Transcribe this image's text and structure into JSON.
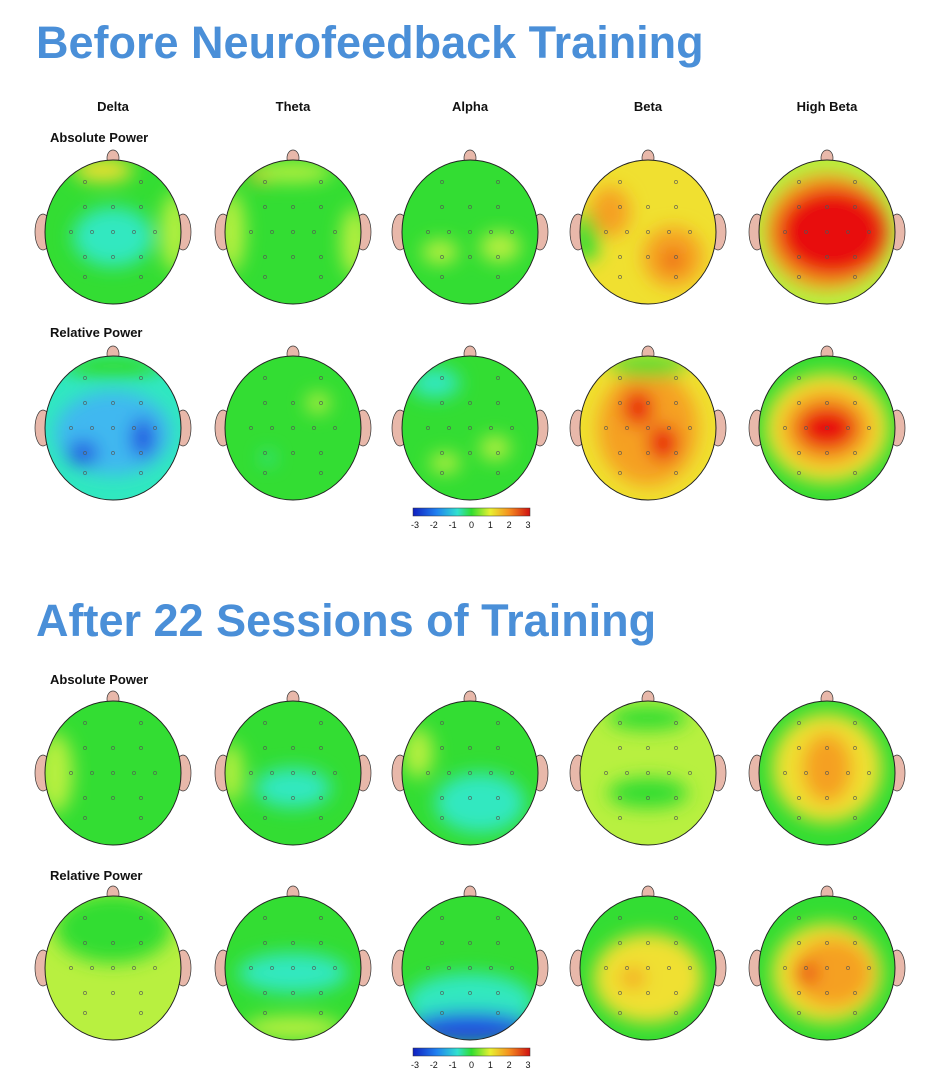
{
  "sections": [
    {
      "title": "Before Neurofeedback Training",
      "bands": [
        "Delta",
        "Theta",
        "Alpha",
        "Beta",
        "High Beta"
      ],
      "rows": [
        {
          "label": "Absolute Power"
        },
        {
          "label": "Relative Power"
        }
      ],
      "colorbar": {
        "ticks": [
          -3,
          -2,
          -1,
          0,
          1,
          2,
          3
        ]
      }
    },
    {
      "title": "After 22 Sessions of Training",
      "rows": [
        {
          "label": "Absolute Power"
        },
        {
          "label": "Relative Power"
        }
      ],
      "colorbar": {
        "ticks": [
          -3,
          -2,
          -1,
          0,
          1,
          2,
          3
        ]
      }
    }
  ]
}
